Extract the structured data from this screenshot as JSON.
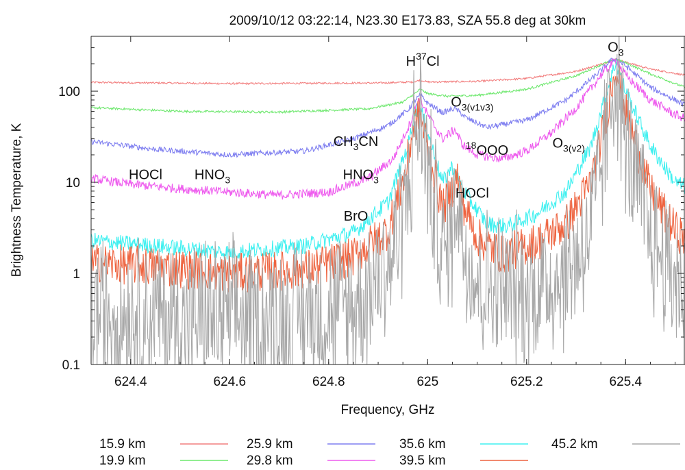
{
  "chart_data": {
    "type": "line",
    "title": "2009/10/12 03:22:14, N23.30 E173.83, SZA 55.8 deg at 30km",
    "xlabel": "Frequency, GHz",
    "ylabel": "Brightness Temperature, K",
    "xlim": [
      624.32,
      625.52
    ],
    "ylim": [
      0.1,
      400
    ],
    "yscale": "log",
    "grid": false,
    "legend_position": "bottom",
    "x_ticks": [
      {
        "value": 624.4,
        "label": "624.4"
      },
      {
        "value": 624.6,
        "label": "624.6"
      },
      {
        "value": 624.8,
        "label": "624.8"
      },
      {
        "value": 625.0,
        "label": "625"
      },
      {
        "value": 625.2,
        "label": "625.2"
      },
      {
        "value": 625.4,
        "label": "625.4"
      }
    ],
    "y_ticks": [
      {
        "value": 0.1,
        "label": "0.1"
      },
      {
        "value": 1,
        "label": "1"
      },
      {
        "value": 10,
        "label": "10"
      },
      {
        "value": 100,
        "label": "100"
      }
    ],
    "series": [
      {
        "name": "15.9 km",
        "color": "#f27f7f",
        "noise": 0.01,
        "points": [
          [
            624.32,
            125
          ],
          [
            624.6,
            121
          ],
          [
            624.9,
            123
          ],
          [
            624.97,
            126
          ],
          [
            624.985,
            132
          ],
          [
            625.0,
            126
          ],
          [
            625.1,
            128
          ],
          [
            625.2,
            138
          ],
          [
            625.3,
            165
          ],
          [
            625.36,
            205
          ],
          [
            625.38,
            225
          ],
          [
            625.4,
            208
          ],
          [
            625.45,
            175
          ],
          [
            625.52,
            150
          ]
        ]
      },
      {
        "name": "19.9 km",
        "color": "#6fe86f",
        "noise": 0.012,
        "points": [
          [
            624.32,
            66
          ],
          [
            624.5,
            60
          ],
          [
            624.7,
            59
          ],
          [
            624.88,
            64
          ],
          [
            624.95,
            76
          ],
          [
            624.975,
            95
          ],
          [
            624.985,
            105
          ],
          [
            625.0,
            94
          ],
          [
            625.04,
            88
          ],
          [
            625.1,
            90
          ],
          [
            625.2,
            105
          ],
          [
            625.3,
            148
          ],
          [
            625.36,
            205
          ],
          [
            625.38,
            225
          ],
          [
            625.4,
            205
          ],
          [
            625.45,
            155
          ],
          [
            625.52,
            110
          ]
        ]
      },
      {
        "name": "25.9 km",
        "color": "#7f7ff0",
        "noise": 0.03,
        "points": [
          [
            624.32,
            28
          ],
          [
            624.45,
            23
          ],
          [
            624.6,
            20
          ],
          [
            624.75,
            22
          ],
          [
            624.85,
            30
          ],
          [
            624.92,
            42
          ],
          [
            624.96,
            62
          ],
          [
            624.975,
            80
          ],
          [
            624.985,
            90
          ],
          [
            625.0,
            74
          ],
          [
            625.03,
            58
          ],
          [
            625.055,
            65
          ],
          [
            625.08,
            50
          ],
          [
            625.12,
            40
          ],
          [
            625.2,
            48
          ],
          [
            625.28,
            80
          ],
          [
            625.34,
            150
          ],
          [
            625.37,
            215
          ],
          [
            625.38,
            225
          ],
          [
            625.4,
            190
          ],
          [
            625.45,
            110
          ],
          [
            625.5,
            80
          ],
          [
            625.52,
            70
          ]
        ]
      },
      {
        "name": "29.8 km",
        "color": "#ee5cee",
        "noise": 0.05,
        "points": [
          [
            624.32,
            11
          ],
          [
            624.4,
            9.5
          ],
          [
            624.5,
            8.5
          ],
          [
            624.6,
            7.8
          ],
          [
            624.7,
            7.2
          ],
          [
            624.8,
            7.8
          ],
          [
            624.88,
            11
          ],
          [
            624.93,
            18
          ],
          [
            624.965,
            45
          ],
          [
            624.978,
            75
          ],
          [
            624.985,
            82
          ],
          [
            625.0,
            55
          ],
          [
            625.03,
            30
          ],
          [
            625.055,
            38
          ],
          [
            625.07,
            26
          ],
          [
            625.1,
            20
          ],
          [
            625.15,
            18
          ],
          [
            625.2,
            22
          ],
          [
            625.25,
            35
          ],
          [
            625.3,
            65
          ],
          [
            625.35,
            150
          ],
          [
            625.38,
            220
          ],
          [
            625.4,
            150
          ],
          [
            625.45,
            80
          ],
          [
            625.5,
            55
          ],
          [
            625.52,
            50
          ]
        ]
      },
      {
        "name": "35.6 km",
        "color": "#3ff0f0",
        "noise": 0.09,
        "points": [
          [
            624.32,
            2.3
          ],
          [
            624.45,
            2.0
          ],
          [
            624.6,
            1.7
          ],
          [
            624.75,
            2.0
          ],
          [
            624.85,
            2.8
          ],
          [
            624.92,
            6
          ],
          [
            624.96,
            25
          ],
          [
            624.975,
            60
          ],
          [
            624.985,
            65
          ],
          [
            625.0,
            35
          ],
          [
            625.03,
            10
          ],
          [
            625.05,
            15
          ],
          [
            625.06,
            11
          ],
          [
            625.08,
            7
          ],
          [
            625.12,
            3.5
          ],
          [
            625.16,
            3.3
          ],
          [
            625.22,
            4.5
          ],
          [
            625.28,
            8
          ],
          [
            625.33,
            25
          ],
          [
            625.36,
            90
          ],
          [
            625.38,
            210
          ],
          [
            625.4,
            100
          ],
          [
            625.45,
            25
          ],
          [
            625.5,
            10
          ],
          [
            625.52,
            9
          ]
        ]
      },
      {
        "name": "39.5 km",
        "color": "#ee6440",
        "noise": 0.22,
        "points": [
          [
            624.32,
            1.3
          ],
          [
            624.45,
            1.2
          ],
          [
            624.6,
            1.0
          ],
          [
            624.75,
            1.1
          ],
          [
            624.85,
            1.5
          ],
          [
            624.92,
            3
          ],
          [
            624.955,
            12
          ],
          [
            624.97,
            40
          ],
          [
            624.985,
            55
          ],
          [
            625.0,
            25
          ],
          [
            625.03,
            5
          ],
          [
            625.05,
            8
          ],
          [
            625.06,
            12
          ],
          [
            625.07,
            6
          ],
          [
            625.1,
            2.5
          ],
          [
            625.15,
            1.6
          ],
          [
            625.22,
            2.2
          ],
          [
            625.28,
            3.5
          ],
          [
            625.33,
            10
          ],
          [
            625.36,
            50
          ],
          [
            625.38,
            200
          ],
          [
            625.4,
            60
          ],
          [
            625.45,
            8
          ],
          [
            625.5,
            3
          ],
          [
            625.52,
            2.4
          ]
        ]
      },
      {
        "name": "45.2 km",
        "color": "#a8a8a8",
        "noise": 0.5,
        "points": [
          [
            624.32,
            0.4
          ],
          [
            624.5,
            0.33
          ],
          [
            624.7,
            0.32
          ],
          [
            624.85,
            0.45
          ],
          [
            624.93,
            1.5
          ],
          [
            624.96,
            8
          ],
          [
            624.975,
            35
          ],
          [
            624.985,
            50
          ],
          [
            625.0,
            15
          ],
          [
            625.03,
            1.5
          ],
          [
            625.05,
            3
          ],
          [
            625.06,
            10
          ],
          [
            625.07,
            2.5
          ],
          [
            625.1,
            0.8
          ],
          [
            625.2,
            0.6
          ],
          [
            625.28,
            1.0
          ],
          [
            625.33,
            3
          ],
          [
            625.36,
            30
          ],
          [
            625.38,
            190
          ],
          [
            625.4,
            25
          ],
          [
            625.45,
            2.5
          ],
          [
            625.5,
            0.9
          ],
          [
            625.52,
            0.7
          ]
        ]
      }
    ],
    "annotations": [
      {
        "base": "H",
        "sup": "37",
        "tail": "Cl",
        "x": 624.99,
        "y": 190
      },
      {
        "base": "O",
        "sub": "3",
        "x": 625.38,
        "y": 270
      },
      {
        "base": "O",
        "sub": "3(v1v3)",
        "x": 625.09,
        "y": 68
      },
      {
        "base": "CH",
        "sub": "3",
        "tail": "CN",
        "x": 624.855,
        "y": 25
      },
      {
        "sup": "18",
        "base": "OOO",
        "x": 625.12,
        "y": 20
      },
      {
        "base": "O",
        "sub": "3(v2)",
        "x": 625.285,
        "y": 24
      },
      {
        "base": "HOCl",
        "x": 624.43,
        "y": 10.8
      },
      {
        "base": "HNO",
        "sub": "3",
        "x": 624.565,
        "y": 10.8
      },
      {
        "base": "HNO",
        "sub": "3",
        "x": 624.865,
        "y": 10.8
      },
      {
        "base": "HOCl",
        "x": 625.09,
        "y": 6.8
      },
      {
        "base": "BrO",
        "x": 624.855,
        "y": 3.8
      }
    ]
  }
}
